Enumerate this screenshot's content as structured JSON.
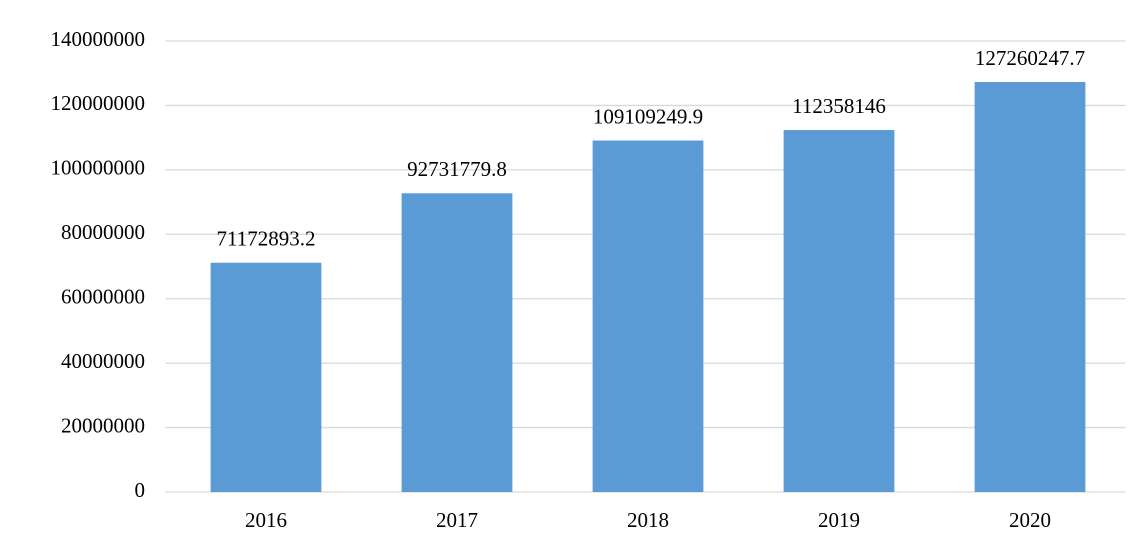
{
  "chart_data": {
    "type": "bar",
    "categories": [
      "2016",
      "2017",
      "2018",
      "2019",
      "2020"
    ],
    "values": [
      71172893.2,
      92731779.8,
      109109249.9,
      112358146,
      127260247.7
    ],
    "color": "#5b9bd5",
    "ylim": [
      0,
      140000000
    ],
    "yticks": [
      0,
      20000000,
      40000000,
      60000000,
      80000000,
      100000000,
      120000000,
      140000000
    ],
    "grid": true,
    "data_labels": true
  }
}
